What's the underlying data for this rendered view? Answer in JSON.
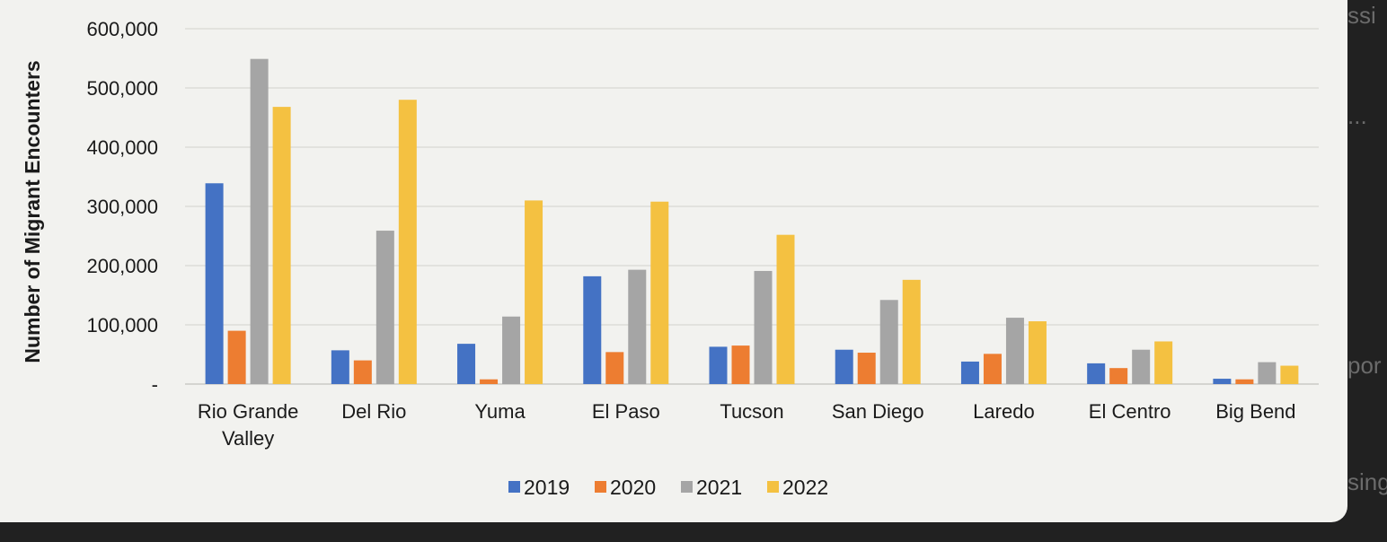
{
  "background_fragments": [
    "ssi",
    "...",
    "por",
    "sing"
  ],
  "chart_data": {
    "type": "bar",
    "ylabel": "Number of Migrant Encounters",
    "xlabel": "",
    "ylim": [
      0,
      600000
    ],
    "y_ticks": [
      0,
      100000,
      200000,
      300000,
      400000,
      500000,
      600000
    ],
    "y_tick_labels": [
      "-",
      "100,000",
      "200,000",
      "300,000",
      "400,000",
      "500,000",
      "600,000"
    ],
    "grid": true,
    "legend_position": "bottom",
    "categories": [
      "Rio Grande Valley",
      "Del Rio",
      "Yuma",
      "El Paso",
      "Tucson",
      "San Diego",
      "Laredo",
      "El Centro",
      "Big Bend"
    ],
    "series": [
      {
        "name": "2019",
        "color": "#4472c4",
        "values": [
          339000,
          57000,
          68000,
          182000,
          63000,
          58000,
          38000,
          35000,
          9000
        ]
      },
      {
        "name": "2020",
        "color": "#ed7d31",
        "values": [
          90000,
          40000,
          8000,
          54000,
          65000,
          53000,
          51000,
          27000,
          8000
        ]
      },
      {
        "name": "2021",
        "color": "#a5a5a5",
        "values": [
          549000,
          259000,
          114000,
          193000,
          191000,
          142000,
          112000,
          58000,
          37000
        ]
      },
      {
        "name": "2022",
        "color": "#f4c141",
        "values": [
          468000,
          480000,
          310000,
          308000,
          252000,
          176000,
          106000,
          72000,
          31000
        ]
      }
    ]
  }
}
